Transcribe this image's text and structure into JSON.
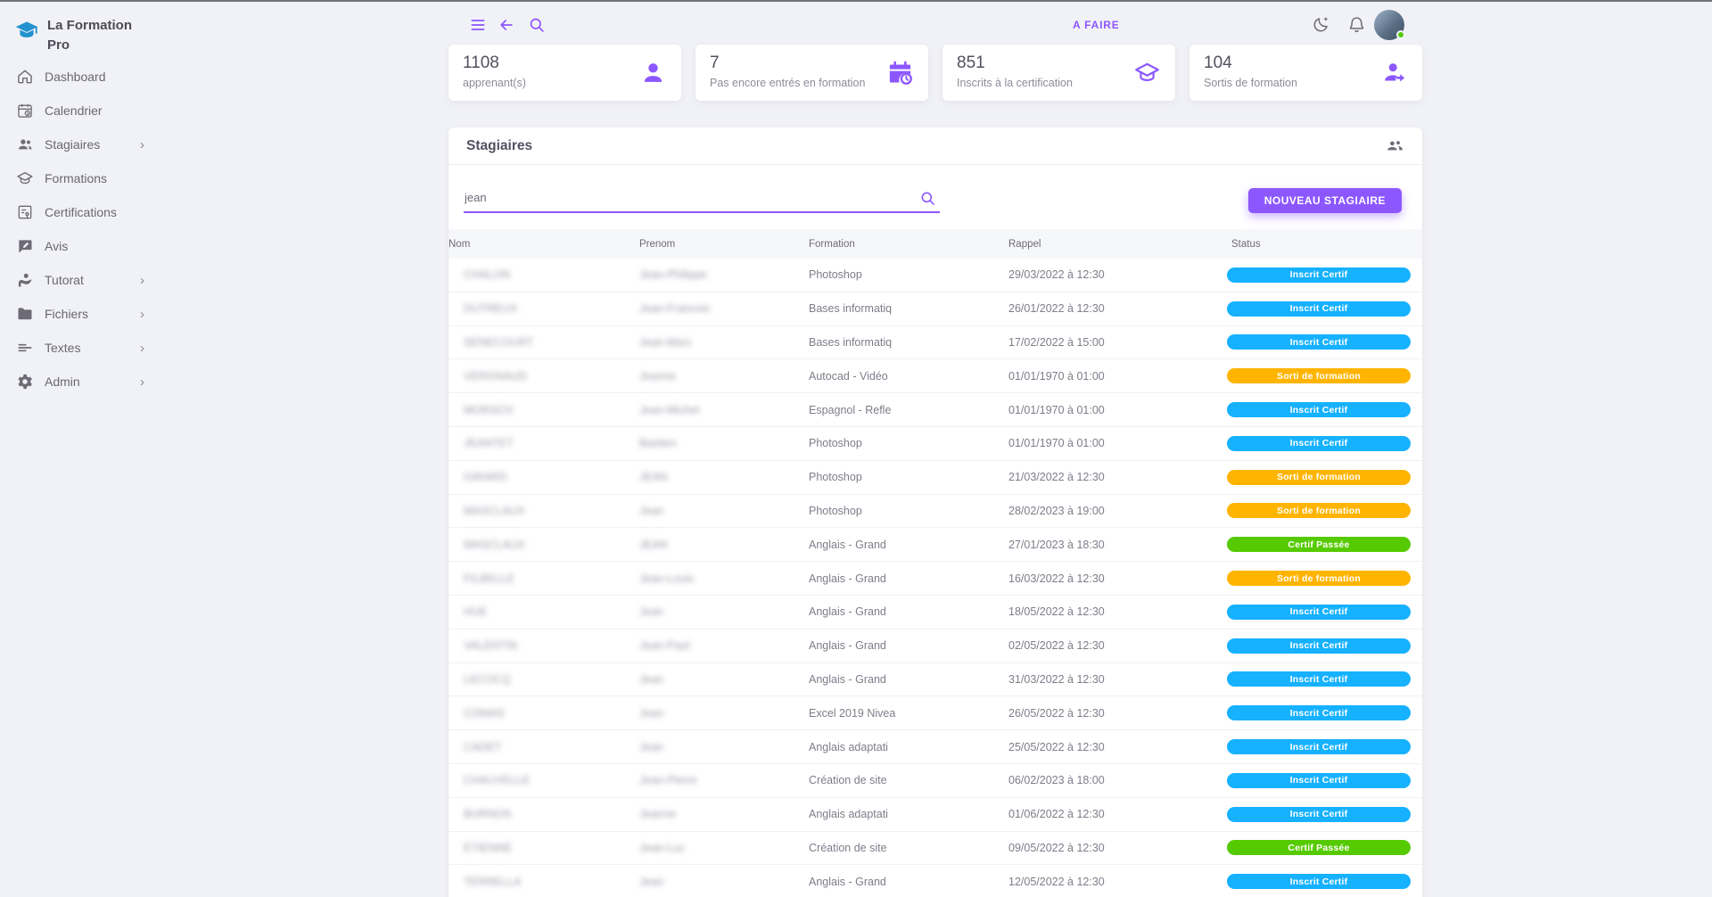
{
  "app": {
    "logo_title": "La Formation Pro"
  },
  "colors": {
    "primary": "#8C57FF",
    "info": "#16B1FF",
    "warning": "#FFB400",
    "success": "#56CA00",
    "background": "#F1F2F7",
    "logo_blue": "#2492CE"
  },
  "sidebar": {
    "items": [
      {
        "label": "Dashboard",
        "icon": "home",
        "chevron": false
      },
      {
        "label": "Calendrier",
        "icon": "calendar",
        "chevron": false
      },
      {
        "label": "Stagiaires",
        "icon": "people",
        "chevron": true
      },
      {
        "label": "Formations",
        "icon": "graduation-cap",
        "chevron": false
      },
      {
        "label": "Certifications",
        "icon": "certificate",
        "chevron": false
      },
      {
        "label": "Avis",
        "icon": "feedback",
        "chevron": false
      },
      {
        "label": "Tutorat",
        "icon": "tutor",
        "chevron": true
      },
      {
        "label": "Fichiers",
        "icon": "folder",
        "chevron": true
      },
      {
        "label": "Textes",
        "icon": "text-lines",
        "chevron": true
      },
      {
        "label": "Admin",
        "icon": "gear",
        "chevron": true
      }
    ]
  },
  "topbar": {
    "todo_label": "A FAIRE"
  },
  "stats_cards": [
    {
      "value": "1108",
      "label": "apprenant(s)",
      "icon": "person"
    },
    {
      "value": "7",
      "label": "Pas encore entrés en formation",
      "icon": "calendar-clock"
    },
    {
      "value": "851",
      "label": "Inscrits à la certification",
      "icon": "graduation-cap"
    },
    {
      "value": "104",
      "label": "Sortis de formation",
      "icon": "person-leave"
    }
  ],
  "stagiaires_panel": {
    "title": "Stagiaires",
    "search_value": "jean",
    "new_button_label": "NOUVEAU STAGIAIRE",
    "columns": [
      "Nom",
      "Prenom",
      "Formation",
      "Rappel",
      "Status"
    ],
    "names_blurred": true,
    "rows": [
      {
        "nom": "CHALON",
        "prenom": "Jean-Philippe",
        "formation": "Photoshop",
        "rappel": "29/03/2022 à 12:30",
        "status": "Inscrit Certif",
        "status_type": "info"
      },
      {
        "nom": "DUTREUX",
        "prenom": "Jean-Francois",
        "formation": "Bases informatiq",
        "rappel": "26/01/2022 à 12:30",
        "status": "Inscrit Certif",
        "status_type": "info"
      },
      {
        "nom": "SENECOURT",
        "prenom": "Jean-Marc",
        "formation": "Bases informatiq",
        "rappel": "17/02/2022 à 15:00",
        "status": "Inscrit Certif",
        "status_type": "info"
      },
      {
        "nom": "VERGNAUD",
        "prenom": "Jeanne",
        "formation": "Autocad - Vidéo",
        "rappel": "01/01/1970 à 01:00",
        "status": "Sorti de formation",
        "status_type": "warning"
      },
      {
        "nom": "MORSCH",
        "prenom": "Jean-Michel",
        "formation": "Espagnol - Refle",
        "rappel": "01/01/1970 à 01:00",
        "status": "Inscrit Certif",
        "status_type": "info"
      },
      {
        "nom": "JEANTET",
        "prenom": "Bastien",
        "formation": "Photoshop",
        "rappel": "01/01/1970 à 01:00",
        "status": "Inscrit Certif",
        "status_type": "info"
      },
      {
        "nom": "GIRARD",
        "prenom": "JEAN",
        "formation": "Photoshop",
        "rappel": "21/03/2022 à 12:30",
        "status": "Sorti de formation",
        "status_type": "warning"
      },
      {
        "nom": "MASCLAUX",
        "prenom": "Jean",
        "formation": "Photoshop",
        "rappel": "28/02/2023 à 19:00",
        "status": "Sorti de formation",
        "status_type": "warning"
      },
      {
        "nom": "MASCLAUX",
        "prenom": "JEAN",
        "formation": "Anglais - Grand",
        "rappel": "27/01/2023 à 18:30",
        "status": "Certif Passée",
        "status_type": "success"
      },
      {
        "nom": "FILBELLE",
        "prenom": "Jean-Louis",
        "formation": "Anglais - Grand",
        "rappel": "16/03/2022 à 12:30",
        "status": "Sorti de formation",
        "status_type": "warning"
      },
      {
        "nom": "HUE",
        "prenom": "Jean",
        "formation": "Anglais - Grand",
        "rappel": "18/05/2022 à 12:30",
        "status": "Inscrit Certif",
        "status_type": "info"
      },
      {
        "nom": "VALENTIN",
        "prenom": "Jean-Paul",
        "formation": "Anglais - Grand",
        "rappel": "02/05/2022 à 12:30",
        "status": "Inscrit Certif",
        "status_type": "info"
      },
      {
        "nom": "LECOCQ",
        "prenom": "Jean",
        "formation": "Anglais - Grand",
        "rappel": "31/03/2022 à 12:30",
        "status": "Inscrit Certif",
        "status_type": "info"
      },
      {
        "nom": "COMAS",
        "prenom": "Jean",
        "formation": "Excel 2019 Nivea",
        "rappel": "26/05/2022 à 12:30",
        "status": "Inscrit Certif",
        "status_type": "info"
      },
      {
        "nom": "CADET",
        "prenom": "Jean",
        "formation": "Anglais adaptati",
        "rappel": "25/05/2022 à 12:30",
        "status": "Inscrit Certif",
        "status_type": "info"
      },
      {
        "nom": "CHAUVELLE",
        "prenom": "Jean-Pierre",
        "formation": "Création de site",
        "rappel": "06/02/2023 à 18:00",
        "status": "Inscrit Certif",
        "status_type": "info"
      },
      {
        "nom": "BURNOS",
        "prenom": "Jeanne",
        "formation": "Anglais adaptati",
        "rappel": "01/06/2022 à 12:30",
        "status": "Inscrit Certif",
        "status_type": "info"
      },
      {
        "nom": "ETIENNE",
        "prenom": "Jean-Luc",
        "formation": "Création de site",
        "rappel": "09/05/2022 à 12:30",
        "status": "Certif Passée",
        "status_type": "success"
      },
      {
        "nom": "TERRELLA",
        "prenom": "Jean",
        "formation": "Anglais - Grand",
        "rappel": "12/05/2022 à 12:30",
        "status": "Inscrit Certif",
        "status_type": "info"
      }
    ]
  }
}
